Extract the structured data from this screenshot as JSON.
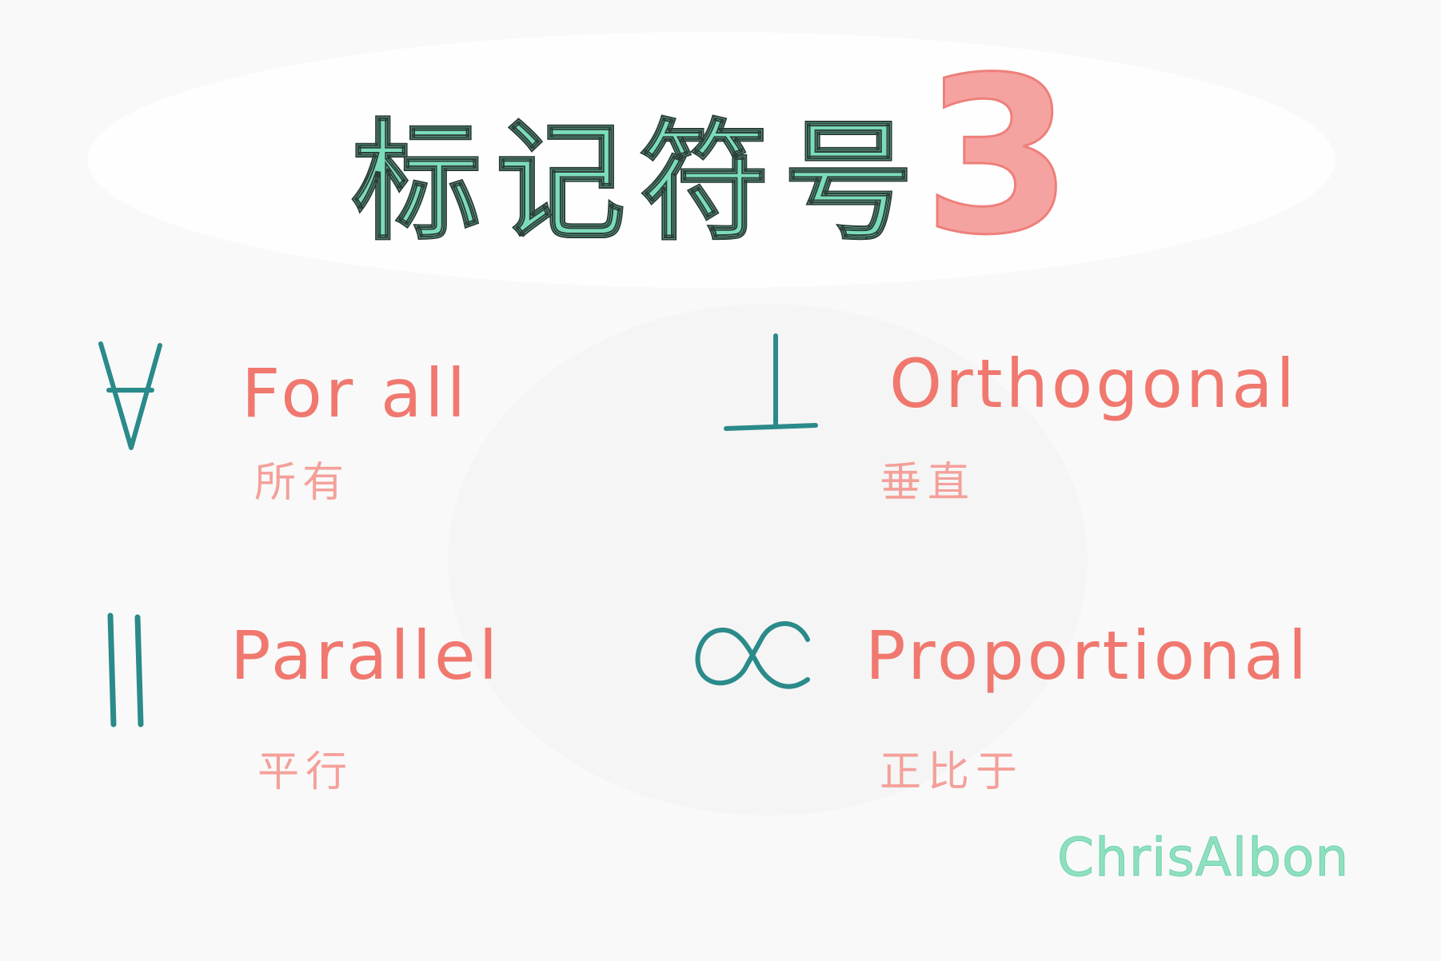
{
  "title": {
    "text": "标记符号",
    "number": "3"
  },
  "terms": [
    {
      "symbol": "for-all",
      "english": "For all",
      "chinese": "所有"
    },
    {
      "symbol": "orthogonal",
      "english": "Orthogonal",
      "chinese": "垂直"
    },
    {
      "symbol": "parallel",
      "english": "Parallel",
      "chinese": "平行"
    },
    {
      "symbol": "proportional",
      "english": "Proportional",
      "chinese": "正比于"
    }
  ],
  "signature": "ChrisAlbon",
  "colors": {
    "title": "#7bdcb9",
    "number": "#f5a3a0",
    "symbol": "#2b8a8a",
    "english": "#f0786f",
    "chinese": "#f4a09a",
    "signature": "#8ee0bf"
  }
}
